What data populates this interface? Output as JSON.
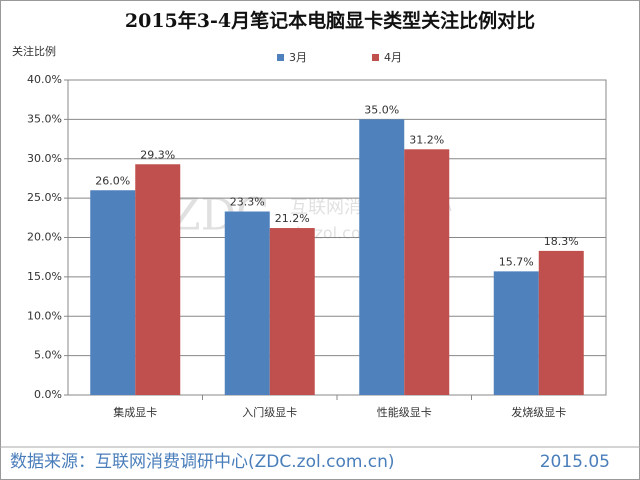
{
  "chart_data": {
    "type": "bar",
    "title": "2015年3-4月笔记本电脑显卡类型关注比例对比",
    "y_label": "关注比例",
    "categories": [
      "集成显卡",
      "入门级显卡",
      "性能级显卡",
      "发烧级显卡"
    ],
    "series": [
      {
        "name": "3月",
        "color": "#4f81bd",
        "values": [
          26.0,
          23.3,
          35.0,
          15.7
        ],
        "value_labels": [
          "26.0%",
          "23.3%",
          "35.0%",
          "15.7%"
        ]
      },
      {
        "name": "4月",
        "color": "#c0504d",
        "values": [
          29.3,
          21.2,
          31.2,
          18.3
        ],
        "value_labels": [
          "29.3%",
          "21.2%",
          "31.2%",
          "18.3%"
        ]
      }
    ],
    "ylim": [
      0,
      40
    ],
    "yticks": [
      {
        "value": 0,
        "label": "0.0%"
      },
      {
        "value": 5,
        "label": "5.0%"
      },
      {
        "value": 10,
        "label": "10.0%"
      },
      {
        "value": 15,
        "label": "15.0%"
      },
      {
        "value": 20,
        "label": "20.0%"
      },
      {
        "value": 25,
        "label": "25.0%"
      },
      {
        "value": 30,
        "label": "30.0%"
      },
      {
        "value": 35,
        "label": "35.0%"
      },
      {
        "value": 40,
        "label": "40.0%"
      }
    ],
    "grid": true,
    "legend": "top",
    "watermark": {
      "logo": "ZDC",
      "name": "互联网消费调研中心",
      "url": "zdc.zol.com.cn"
    },
    "source": "数据来源：互联网消费调研中心(ZDC.zol.com.cn)",
    "date": "2015.05"
  }
}
